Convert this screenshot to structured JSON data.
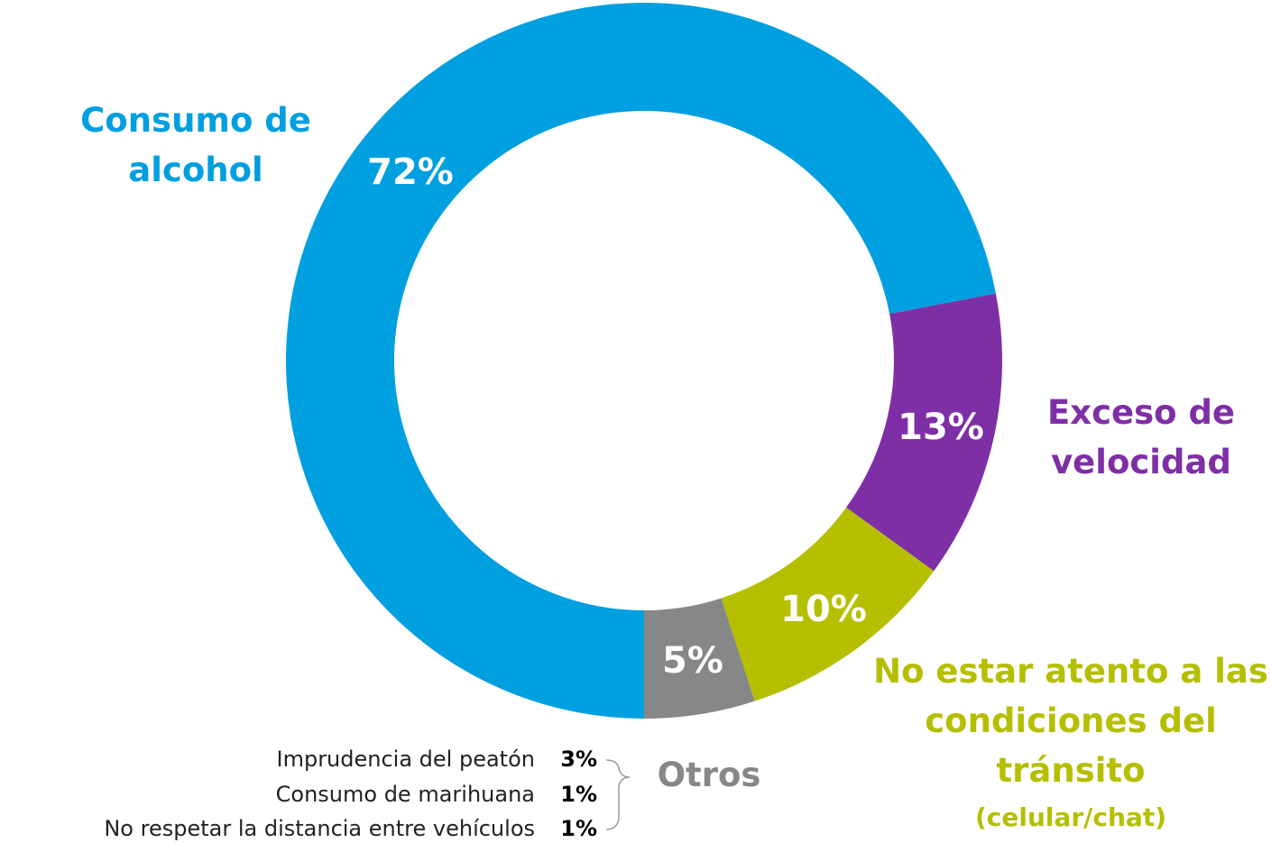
{
  "chart_data": {
    "type": "donut",
    "categories": [
      "Consumo de alcohol",
      "Exceso de velocidad",
      "No estar atento a las condiciones del tránsito",
      "Otros"
    ],
    "category_details": [
      null,
      null,
      "(celular/chat)",
      null
    ],
    "values": [
      72,
      13,
      10,
      5
    ],
    "value_labels": [
      "72%",
      "13%",
      "10%",
      "5%"
    ],
    "colors": [
      "#009fe0",
      "#7f2fa6",
      "#b5bf00",
      "#878787"
    ],
    "otros_breakdown": {
      "categories": [
        "Imprudencia del peatón",
        "Consumo de marihuana",
        "No respetar la distancia entre vehículos"
      ],
      "values": [
        3,
        1,
        1
      ],
      "value_labels": [
        "3%",
        "1%",
        "1%"
      ]
    }
  }
}
